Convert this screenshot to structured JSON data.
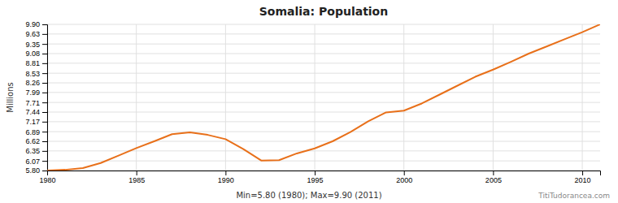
{
  "chart_data": {
    "type": "line",
    "title": "Somalia: Population",
    "y_label": "Millions",
    "annotations": [
      "Min=5.80 (1980); Max=9.90 (2011)",
      "TitiTudorancea.com"
    ],
    "color": "#e8701a",
    "grid": true,
    "xlim": [
      1980,
      2011
    ],
    "xticks": [
      1980,
      1985,
      1990,
      1995,
      2000,
      2005,
      2010
    ],
    "ylim": [
      5.8,
      9.9
    ],
    "yticks": [
      {
        "value": 5.8,
        "label": "5.80"
      },
      6.07,
      6.35,
      6.62,
      6.89,
      7.17,
      7.44,
      7.71,
      7.99,
      8.26,
      8.53,
      8.81,
      9.08,
      9.35,
      9.63,
      {
        "value": 9.9,
        "label": "9.90"
      }
    ],
    "x": [
      1980,
      1981,
      1982,
      1983,
      1984,
      1985,
      1986,
      1987,
      1988,
      1989,
      1990,
      1991,
      1992,
      1993,
      1994,
      1995,
      1996,
      1997,
      1998,
      1999,
      2000,
      2001,
      2002,
      2003,
      2004,
      2005,
      2006,
      2007,
      2008,
      2009,
      2010,
      2011
    ],
    "values": [
      5.8,
      5.82,
      5.87,
      6.01,
      6.22,
      6.43,
      6.62,
      6.82,
      6.87,
      6.8,
      6.68,
      6.4,
      6.08,
      6.09,
      6.28,
      6.42,
      6.62,
      6.88,
      7.18,
      7.43,
      7.48,
      7.68,
      7.93,
      8.18,
      8.43,
      8.63,
      8.85,
      9.08,
      9.28,
      9.48,
      9.68,
      9.9
    ]
  }
}
